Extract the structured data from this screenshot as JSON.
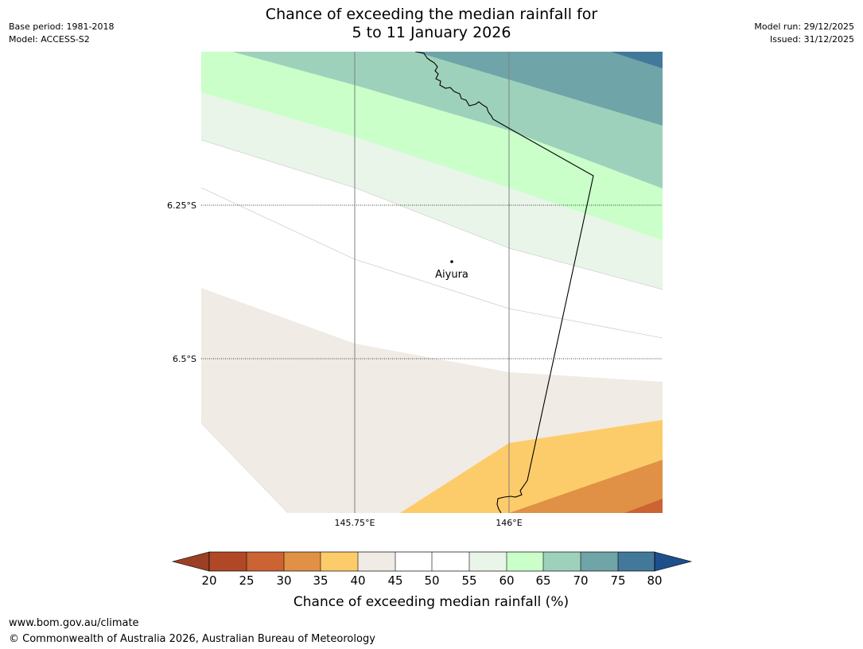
{
  "title": {
    "line1": "Chance of exceeding the median rainfall for",
    "line2": "5 to 11 January 2026"
  },
  "meta_left": {
    "base_period": "Base period: 1981-2018",
    "model": "Model: ACCESS-S2"
  },
  "meta_right": {
    "model_run": "Model run: 29/12/2025",
    "issued": "Issued: 31/12/2025"
  },
  "map": {
    "latitude_labels": [
      "6.25°S",
      "6.5°S"
    ],
    "longitude_labels": [
      "145.75°E",
      "146°E"
    ],
    "place_name": "Aiyura"
  },
  "colorbar": {
    "ticks": [
      "20",
      "25",
      "30",
      "35",
      "40",
      "45",
      "50",
      "55",
      "60",
      "65",
      "70",
      "75",
      "80"
    ],
    "label": "Chance of exceeding median rainfall (%)",
    "colors": {
      "below_20": "#9b3f25",
      "20-25": "#b04827",
      "25-30": "#cc6332",
      "30-35": "#e09146",
      "35-40": "#fdcc6a",
      "40-45": "#f0ebe5",
      "45-50": "#ffffff",
      "50-55": "#ffffff",
      "55-60": "#e9f5e9",
      "60-65": "#caffca",
      "65-70": "#9ed1bb",
      "70-75": "#6fa4a8",
      "75-80": "#42799b",
      "above_80": "#1d4f8a"
    }
  },
  "footer": {
    "website": "www.bom.gov.au/climate",
    "copyright": "© Commonwealth of Australia 2026, Australian Bureau of Meteorology"
  }
}
